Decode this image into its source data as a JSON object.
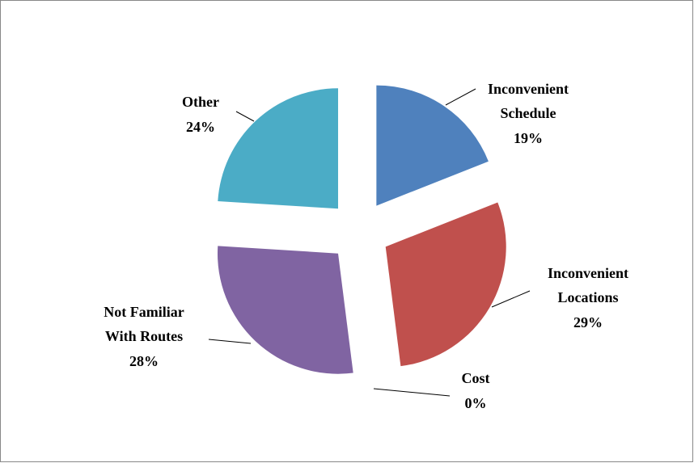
{
  "chart_data": {
    "type": "pie",
    "categories": [
      "Inconvenient Schedule",
      "Inconvenient Locations",
      "Cost",
      "Not Familiar With Routes",
      "Other"
    ],
    "values": [
      19,
      29,
      0,
      28,
      24
    ],
    "value_labels": [
      "19%",
      "29%",
      "0%",
      "28%",
      "24%"
    ],
    "colors": [
      "#4f81bd",
      "#c0504d",
      "#9bbb59",
      "#8064a2",
      "#4bacc6"
    ]
  }
}
